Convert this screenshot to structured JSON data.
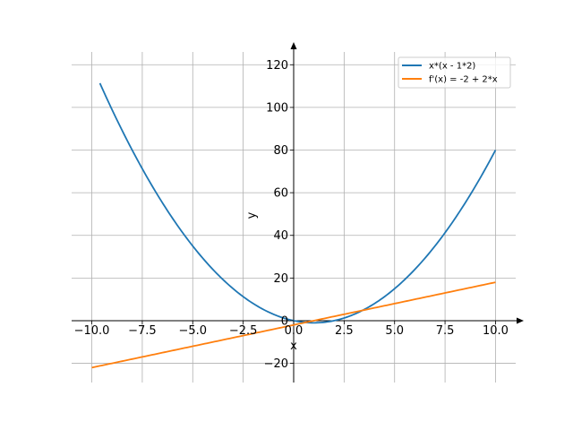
{
  "chart_data": {
    "type": "line",
    "xlabel": "x",
    "ylabel": "y",
    "xlim": [
      -11,
      11
    ],
    "ylim": [
      -29,
      126
    ],
    "xticks": [
      -10.0,
      -7.5,
      -5.0,
      -2.5,
      0.0,
      2.5,
      5.0,
      7.5,
      10.0
    ],
    "xtick_labels": [
      "−10.0",
      "−7.5",
      "−5.0",
      "−2.5",
      "0.0",
      "2.5",
      "5.0",
      "7.5",
      "10.0"
    ],
    "yticks": [
      -20,
      0,
      20,
      40,
      60,
      80,
      100,
      120
    ],
    "ytick_labels": [
      "−20",
      "0",
      "20",
      "40",
      "60",
      "80",
      "100",
      "120"
    ],
    "grid": true,
    "legend_position": "top-right",
    "series": [
      {
        "name": "x*(x - 1*2)",
        "color": "#1f77b4",
        "function": "x*(x-2)",
        "x_range": [
          -9.6,
          10
        ]
      },
      {
        "name": "f'(x) = -2 + 2*x",
        "color": "#ff7f0e",
        "function": "-2+2*x",
        "x_range": [
          -10,
          10
        ]
      }
    ]
  }
}
